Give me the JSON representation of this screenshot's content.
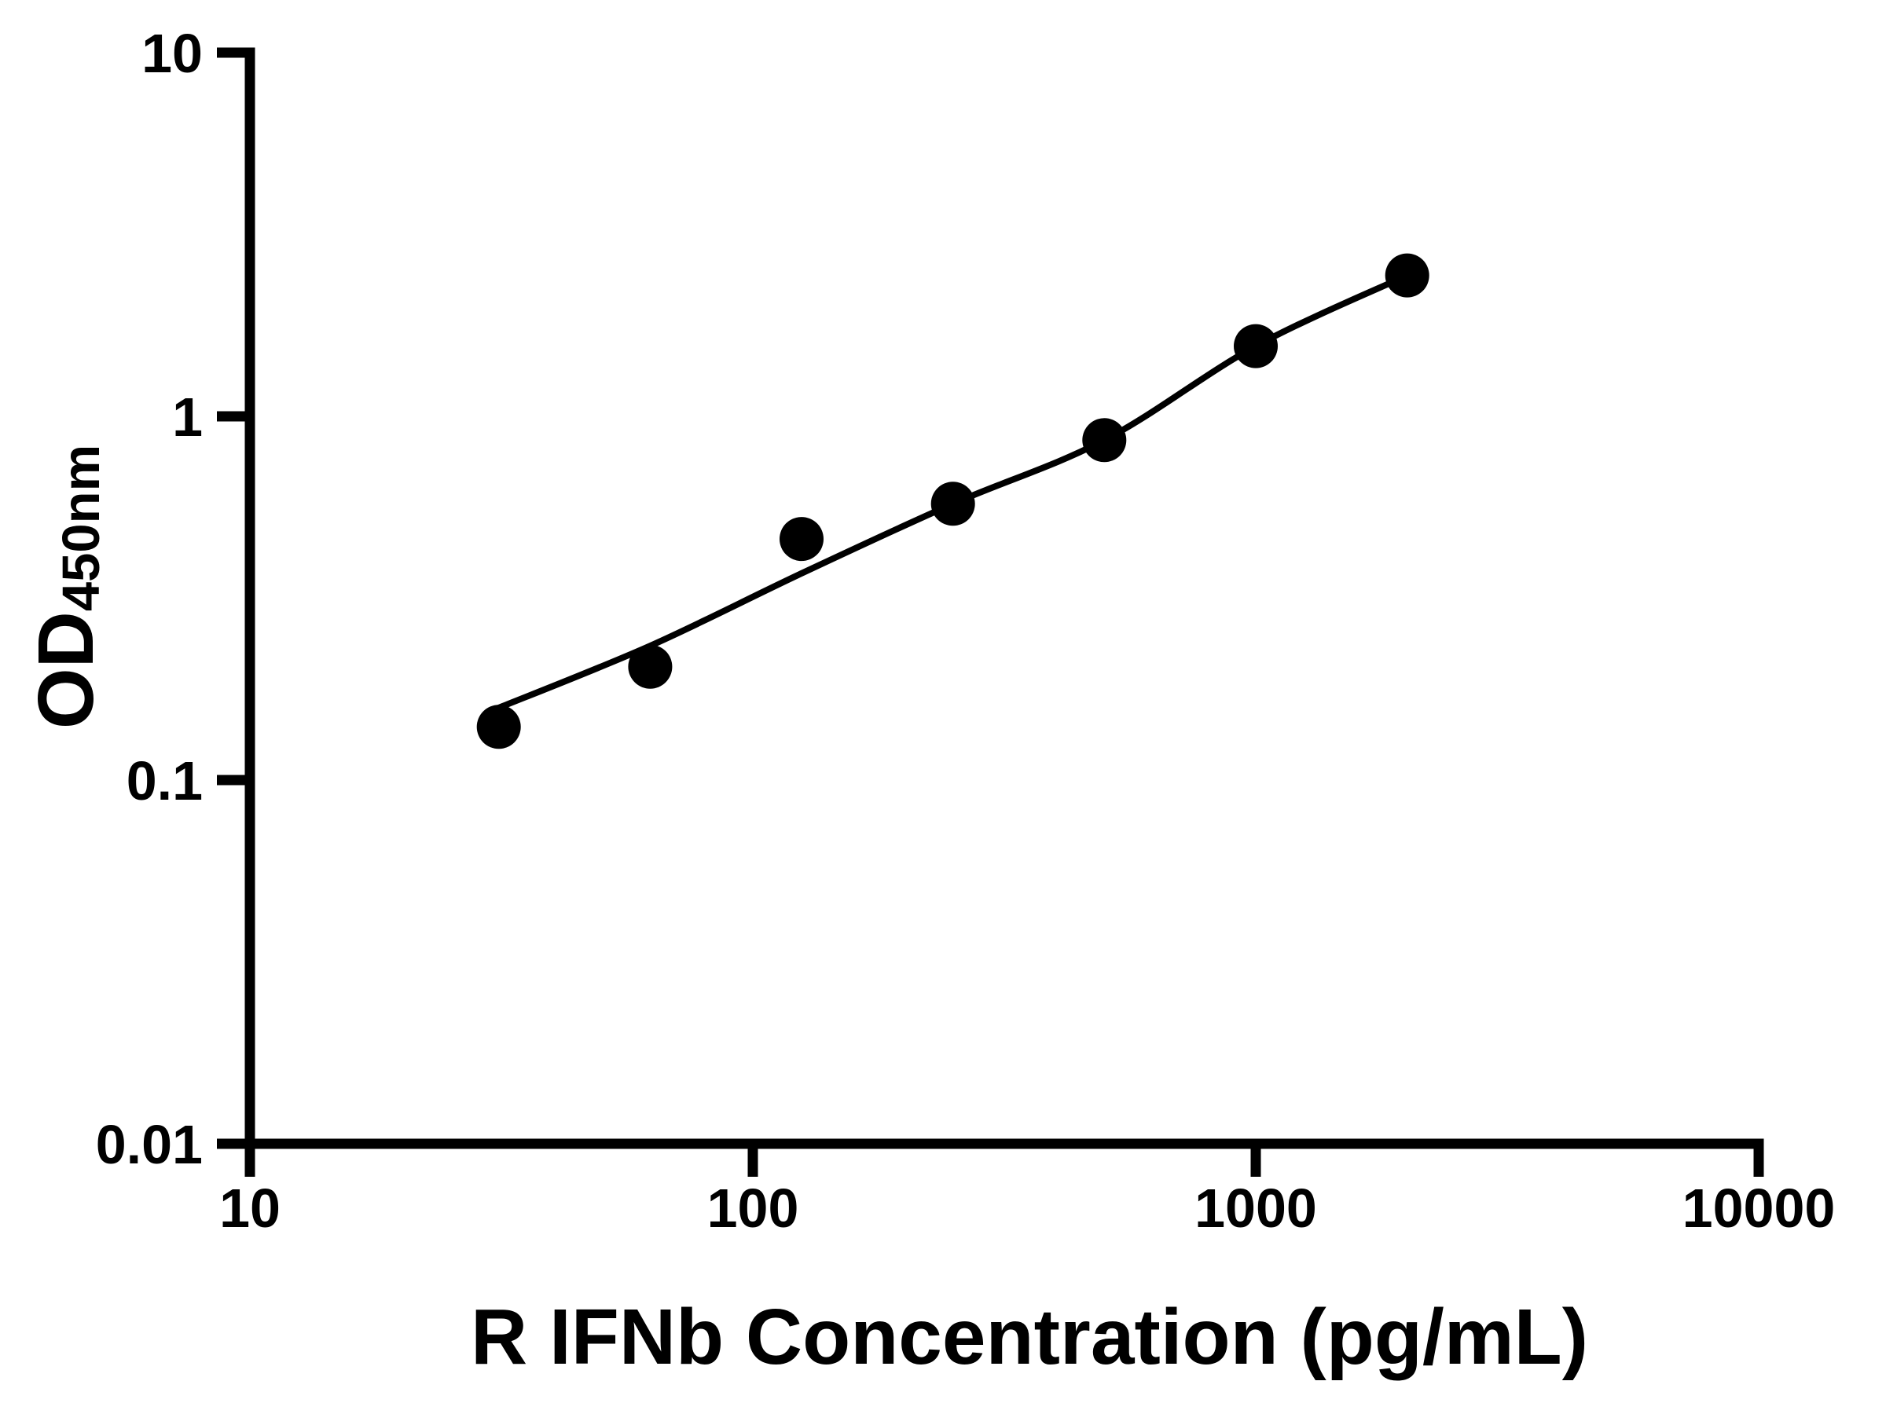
{
  "figure": {
    "background": "#ffffff",
    "foreground": "#000000"
  },
  "chart_data": {
    "type": "scatter",
    "title": "",
    "xlabel": "R IFNb Concentration (pg/mL)",
    "ylabel_main": "OD",
    "ylabel_sub": "450nm",
    "x_scale": "log10",
    "y_scale": "log10",
    "xlim": [
      10,
      10000
    ],
    "ylim": [
      0.01,
      10
    ],
    "grid": false,
    "legend": "none",
    "x_ticks": [
      {
        "value": 10,
        "label": "10"
      },
      {
        "value": 100,
        "label": "100"
      },
      {
        "value": 1000,
        "label": "1000"
      },
      {
        "value": 10000,
        "label": "10000"
      }
    ],
    "y_ticks": [
      {
        "value": 10,
        "label": "10"
      },
      {
        "value": 1,
        "label": "1"
      },
      {
        "value": 0.1,
        "label": "0.1"
      },
      {
        "value": 0.01,
        "label": "0.01"
      }
    ],
    "series": [
      {
        "name": "standard-points",
        "marker": "circle",
        "color": "#000000",
        "x": [
          31.25,
          62.5,
          125,
          250,
          500,
          1000,
          2000
        ],
        "y": [
          0.14,
          0.205,
          0.46,
          0.575,
          0.86,
          1.56,
          2.44
        ]
      }
    ],
    "fit_line": {
      "name": "standard-curve-fit",
      "color": "#000000",
      "x": [
        31.25,
        62.5,
        125,
        250,
        500,
        1000,
        2000
      ],
      "y": [
        0.158,
        0.234,
        0.37,
        0.575,
        0.86,
        1.56,
        2.44
      ]
    }
  }
}
